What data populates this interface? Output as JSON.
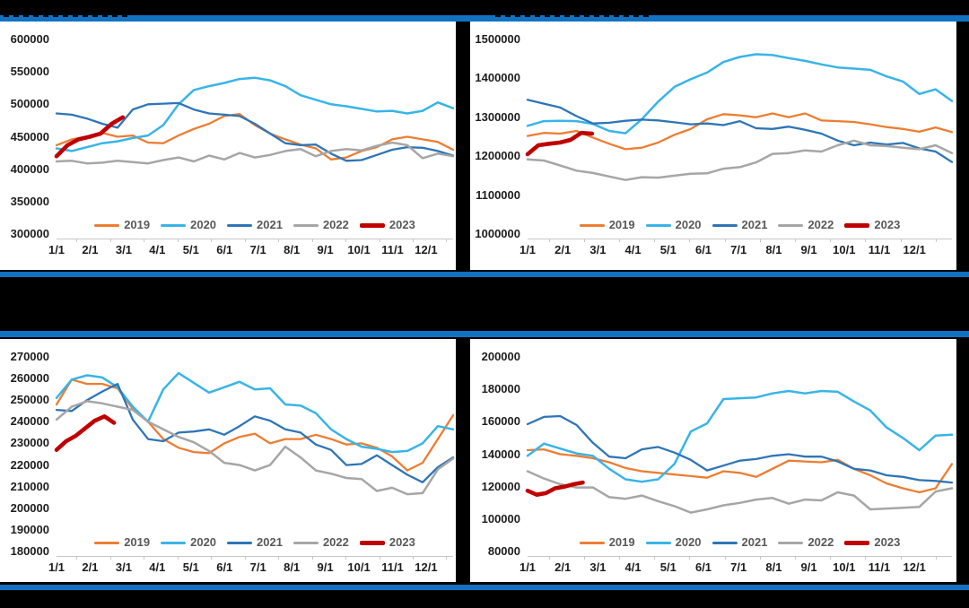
{
  "page": {
    "background_color": "#000000",
    "accent_bar_color": "#1272C2",
    "panel_color": "#FFFFFF",
    "note": "chart titles are covered by black redaction bars"
  },
  "legend": {
    "labels": [
      "2019",
      "2020",
      "2021",
      "2022",
      "2023"
    ],
    "colors": [
      "#ED7D31",
      "#38B4E8",
      "#2E75B6",
      "#A6A6A6",
      "#C00000"
    ],
    "position": "bottom-center"
  },
  "x_axis_labels": [
    "1/1",
    "2/1",
    "3/1",
    "4/1",
    "5/1",
    "6/1",
    "7/1",
    "8/1",
    "9/1",
    "10/1",
    "11/1",
    "12/1"
  ],
  "chart_data": [
    {
      "id": "top-left",
      "type": "line",
      "side": "left",
      "grid": false,
      "legend_position": "bottom",
      "y_axis": {
        "min": 300000,
        "max": 600000,
        "step": 50000,
        "labels": [
          "600000",
          "550000",
          "500000",
          "450000",
          "400000",
          "350000",
          "300000"
        ]
      },
      "x_axis": {
        "labels": [
          "1/1",
          "2/1",
          "3/1",
          "4/1",
          "5/1",
          "6/1",
          "7/1",
          "8/1",
          "9/1",
          "10/1",
          "11/1",
          "12/1"
        ]
      },
      "series": [
        {
          "name": "2019",
          "color": "#ED7D31",
          "width": 2.3,
          "span": 1,
          "values": [
            437000,
            446000,
            450000,
            456000,
            450000,
            452000,
            441000,
            440000,
            452000,
            462000,
            470000,
            482000,
            485000,
            468000,
            455000,
            446000,
            438000,
            432000,
            415000,
            418000,
            428000,
            434000,
            446000,
            450000,
            446000,
            442000,
            430000
          ]
        },
        {
          "name": "2020",
          "color": "#38B4E8",
          "width": 2.5,
          "span": 1,
          "values": [
            432000,
            428000,
            434000,
            440000,
            443000,
            448000,
            452000,
            468000,
            500000,
            522000,
            528000,
            533000,
            539000,
            541000,
            537000,
            528000,
            514000,
            507000,
            500000,
            497000,
            493000,
            489000,
            490000,
            486000,
            490000,
            503000,
            494000
          ]
        },
        {
          "name": "2021",
          "color": "#2E75B6",
          "width": 2.3,
          "span": 1,
          "values": [
            486000,
            484000,
            478000,
            470000,
            464000,
            492000,
            500000,
            501000,
            502000,
            492000,
            486000,
            484000,
            482000,
            470000,
            455000,
            440000,
            437000,
            438000,
            424000,
            413000,
            414000,
            422000,
            430000,
            434000,
            433000,
            428000,
            421000
          ]
        },
        {
          "name": "2022",
          "color": "#A6A6A6",
          "width": 2.5,
          "span": 1,
          "values": [
            412000,
            413000,
            409000,
            410000,
            413000,
            411000,
            409000,
            414000,
            418000,
            412000,
            421000,
            415000,
            425000,
            418000,
            422000,
            428000,
            431000,
            420000,
            428000,
            431000,
            429000,
            436000,
            441000,
            437000,
            417000,
            424000,
            420000
          ]
        },
        {
          "name": "2023",
          "color": "#C00000",
          "width": 4.6,
          "span": 0.167,
          "values": [
            420000,
            437000,
            446000,
            450000,
            455000,
            470000,
            480000
          ]
        }
      ]
    },
    {
      "id": "top-right",
      "type": "line",
      "side": "right",
      "grid": false,
      "legend_position": "bottom",
      "y_axis": {
        "min": 1000000,
        "max": 1500000,
        "step": 100000,
        "labels": [
          "1500000",
          "1400000",
          "1300000",
          "1200000",
          "1100000",
          "1000000"
        ]
      },
      "x_axis": {
        "labels": [
          "1/1",
          "2/1",
          "3/1",
          "4/1",
          "5/1",
          "6/1",
          "7/1",
          "8/1",
          "9/1",
          "10/1",
          "11/1",
          "12/1"
        ]
      },
      "series": [
        {
          "name": "2019",
          "color": "#ED7D31",
          "width": 2.3,
          "span": 1,
          "values": [
            1252000,
            1260000,
            1258000,
            1265000,
            1248000,
            1232000,
            1218000,
            1222000,
            1235000,
            1255000,
            1270000,
            1295000,
            1308000,
            1305000,
            1300000,
            1310000,
            1300000,
            1310000,
            1292000,
            1290000,
            1288000,
            1282000,
            1275000,
            1270000,
            1263000,
            1274000,
            1262000
          ]
        },
        {
          "name": "2020",
          "color": "#38B4E8",
          "width": 2.5,
          "span": 1,
          "values": [
            1278000,
            1290000,
            1291000,
            1290000,
            1283000,
            1265000,
            1259000,
            1295000,
            1340000,
            1378000,
            1398000,
            1415000,
            1442000,
            1455000,
            1462000,
            1460000,
            1452000,
            1445000,
            1436000,
            1428000,
            1425000,
            1422000,
            1405000,
            1392000,
            1360000,
            1372000,
            1342000
          ]
        },
        {
          "name": "2021",
          "color": "#2E75B6",
          "width": 2.3,
          "span": 1,
          "values": [
            1345000,
            1335000,
            1325000,
            1303000,
            1284000,
            1286000,
            1291000,
            1294000,
            1292000,
            1287000,
            1282000,
            1284000,
            1280000,
            1290000,
            1272000,
            1270000,
            1276000,
            1268000,
            1258000,
            1240000,
            1228000,
            1235000,
            1230000,
            1234000,
            1220000,
            1212000,
            1185000
          ]
        },
        {
          "name": "2022",
          "color": "#A6A6A6",
          "width": 2.5,
          "span": 1,
          "values": [
            1192000,
            1189000,
            1176000,
            1163000,
            1157000,
            1148000,
            1139000,
            1146000,
            1145000,
            1150000,
            1155000,
            1156000,
            1168000,
            1172000,
            1184000,
            1206000,
            1208000,
            1215000,
            1212000,
            1228000,
            1240000,
            1228000,
            1226000,
            1222000,
            1218000,
            1228000,
            1208000
          ]
        },
        {
          "name": "2023",
          "color": "#C00000",
          "width": 4.6,
          "span": 0.152,
          "values": [
            1205000,
            1228000,
            1232000,
            1235000,
            1242000,
            1260000,
            1258000
          ]
        }
      ]
    },
    {
      "id": "bottom-left",
      "type": "line",
      "side": "left",
      "grid": false,
      "legend_position": "bottom",
      "y_axis": {
        "min": 180000,
        "max": 270000,
        "step": 10000,
        "labels": [
          "270000",
          "260000",
          "250000",
          "240000",
          "230000",
          "220000",
          "210000",
          "200000",
          "190000",
          "180000"
        ]
      },
      "x_axis": {
        "labels": [
          "1/1",
          "2/1",
          "3/1",
          "4/1",
          "5/1",
          "6/1",
          "7/1",
          "8/1",
          "9/1",
          "10/1",
          "11/1",
          "12/1"
        ]
      },
      "series": [
        {
          "name": "2019",
          "color": "#ED7D31",
          "width": 2.3,
          "span": 1,
          "values": [
            248000,
            259500,
            257500,
            257500,
            255500,
            246000,
            240000,
            232000,
            228000,
            226000,
            225500,
            230000,
            233000,
            234500,
            230000,
            232000,
            232000,
            234000,
            232000,
            229500,
            230000,
            228000,
            224000,
            217500,
            221000,
            232000,
            243000
          ]
        },
        {
          "name": "2020",
          "color": "#38B4E8",
          "width": 2.5,
          "span": 1,
          "values": [
            251000,
            259500,
            261500,
            260500,
            256000,
            247000,
            240000,
            255000,
            262500,
            258000,
            253500,
            256000,
            258500,
            255000,
            255500,
            248000,
            247500,
            244000,
            236500,
            232000,
            228500,
            227500,
            226000,
            226500,
            230000,
            238000,
            236500
          ]
        },
        {
          "name": "2021",
          "color": "#2E75B6",
          "width": 2.3,
          "span": 1,
          "values": [
            245500,
            245000,
            250000,
            254000,
            257500,
            241000,
            232000,
            231000,
            235000,
            235500,
            236500,
            234000,
            238000,
            242500,
            240500,
            236500,
            235000,
            229500,
            227000,
            220000,
            220500,
            224500,
            220000,
            215500,
            212000,
            219000,
            223500
          ]
        },
        {
          "name": "2022",
          "color": "#A6A6A6",
          "width": 2.5,
          "span": 1,
          "values": [
            241000,
            247000,
            249500,
            248500,
            247000,
            245500,
            240000,
            236500,
            233000,
            230500,
            226500,
            221000,
            220000,
            217500,
            220000,
            228500,
            223500,
            217500,
            216000,
            214000,
            213500,
            208000,
            209500,
            206500,
            207000,
            218000,
            223000
          ]
        },
        {
          "name": "2023",
          "color": "#C00000",
          "width": 4.6,
          "span": 0.145,
          "values": [
            227000,
            231000,
            233500,
            237000,
            240500,
            242500,
            239500
          ]
        }
      ]
    },
    {
      "id": "bottom-right",
      "type": "line",
      "side": "right",
      "grid": false,
      "legend_position": "bottom",
      "y_axis": {
        "min": 80000,
        "max": 200000,
        "step": 20000,
        "labels": [
          "200000",
          "180000",
          "160000",
          "140000",
          "120000",
          "100000",
          "80000"
        ]
      },
      "x_axis": {
        "labels": [
          "1/1",
          "2/1",
          "3/1",
          "4/1",
          "5/1",
          "6/1",
          "7/1",
          "8/1",
          "9/1",
          "10/1",
          "11/1",
          "12/1"
        ]
      },
      "series": [
        {
          "name": "2019",
          "color": "#ED7D31",
          "width": 2.3,
          "span": 1,
          "values": [
            142500,
            143000,
            140000,
            139000,
            137500,
            135000,
            131500,
            129500,
            128500,
            127500,
            126500,
            125500,
            129500,
            128500,
            126000,
            131000,
            136000,
            135500,
            135000,
            136500,
            131000,
            127000,
            122000,
            119000,
            116500,
            119000,
            134000
          ]
        },
        {
          "name": "2020",
          "color": "#38B4E8",
          "width": 2.5,
          "span": 1,
          "values": [
            139000,
            146500,
            143500,
            140500,
            139000,
            131000,
            124500,
            123000,
            124500,
            134000,
            154000,
            159000,
            174000,
            174500,
            175000,
            177500,
            179000,
            177500,
            179000,
            178500,
            172500,
            167000,
            156500,
            150000,
            142500,
            151500,
            152000
          ]
        },
        {
          "name": "2021",
          "color": "#2E75B6",
          "width": 2.3,
          "span": 1,
          "values": [
            158500,
            163000,
            163500,
            158000,
            147000,
            138500,
            137500,
            143000,
            144500,
            141000,
            136500,
            130000,
            133000,
            136000,
            137000,
            139000,
            140000,
            138500,
            138500,
            135500,
            131000,
            130000,
            127000,
            126000,
            124000,
            123500,
            122500
          ]
        },
        {
          "name": "2022",
          "color": "#A6A6A6",
          "width": 2.5,
          "span": 1,
          "values": [
            129500,
            125000,
            121500,
            119500,
            119500,
            113500,
            112500,
            114500,
            111000,
            108000,
            104000,
            106000,
            108500,
            110000,
            112000,
            113000,
            109500,
            112000,
            111500,
            116500,
            114500,
            106000,
            106500,
            107000,
            107500,
            117000,
            119000
          ]
        },
        {
          "name": "2023",
          "color": "#C00000",
          "width": 4.6,
          "span": 0.13,
          "values": [
            117500,
            115000,
            116000,
            119000,
            120000,
            121500,
            122500
          ]
        }
      ]
    }
  ]
}
